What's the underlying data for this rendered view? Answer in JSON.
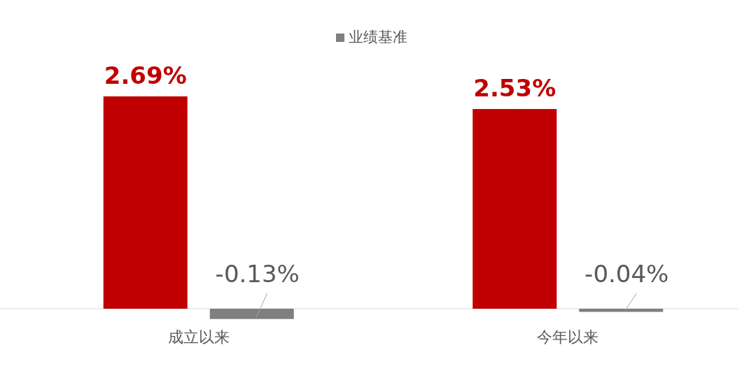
{
  "chart_data": {
    "type": "bar",
    "categories": [
      "成立以来",
      "今年以来"
    ],
    "series": [
      {
        "color": "#c00000",
        "values": [
          2.69,
          2.53
        ],
        "value_labels": [
          "2.69%",
          "2.53%"
        ]
      },
      {
        "name": "业绩基准",
        "color": "#7f7f7f",
        "values": [
          -0.13,
          -0.04
        ],
        "value_labels": [
          "-0.13%",
          "-0.04%"
        ]
      }
    ],
    "legend": "top"
  }
}
